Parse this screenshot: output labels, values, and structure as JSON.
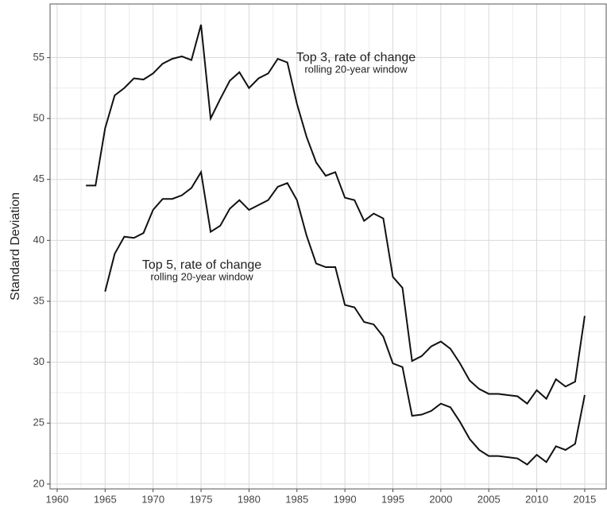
{
  "chart_data": {
    "type": "line",
    "y_label": "Standard Deviation",
    "annotations": [
      {
        "text": "Top 3, rate of change",
        "sub": "rolling 20-year window"
      },
      {
        "text": "Top 5, rate of change",
        "sub": "rolling 20-year window"
      }
    ],
    "series": [
      {
        "color": "#111111",
        "x": [
          1963,
          1964,
          1965,
          1966,
          1967,
          1968,
          1969,
          1970,
          1971,
          1972,
          1973,
          1974,
          1975,
          1976,
          1977,
          1978,
          1979,
          1980,
          1981,
          1982,
          1983,
          1984,
          1985,
          1986,
          1987,
          1988,
          1989,
          1990,
          1991,
          1992,
          1993,
          1994,
          1995,
          1996,
          1997,
          1998,
          1999,
          2000,
          2001,
          2002,
          2003,
          2004,
          2005,
          2006,
          2007,
          2008,
          2009,
          2010,
          2011,
          2012,
          2013,
          2014,
          2015
        ],
        "values": [
          44.5,
          44.5,
          49.2,
          51.9,
          52.5,
          53.3,
          53.2,
          53.7,
          54.5,
          54.9,
          55.1,
          54.8,
          57.7,
          50.0,
          51.6,
          53.1,
          53.8,
          52.5,
          53.3,
          53.7,
          54.9,
          54.6,
          51.2,
          48.5,
          46.4,
          45.3,
          45.6,
          43.5,
          43.3,
          41.6,
          42.2,
          41.8,
          37.0,
          36.1,
          30.1,
          30.5,
          31.3,
          31.7,
          31.1,
          29.9,
          28.5,
          27.8,
          27.4,
          27.4,
          27.3,
          27.2,
          26.6,
          27.7,
          27.0,
          28.6,
          28.0,
          28.4,
          33.8
        ]
      },
      {
        "color": "#111111",
        "x": [
          1965,
          1966,
          1967,
          1968,
          1969,
          1970,
          1971,
          1972,
          1973,
          1974,
          1975,
          1976,
          1977,
          1978,
          1979,
          1980,
          1981,
          1982,
          1983,
          1984,
          1985,
          1986,
          1987,
          1988,
          1989,
          1990,
          1991,
          1992,
          1993,
          1994,
          1995,
          1996,
          1997,
          1998,
          1999,
          2000,
          2001,
          2002,
          2003,
          2004,
          2005,
          2006,
          2007,
          2008,
          2009,
          2010,
          2011,
          2012,
          2013,
          2014,
          2015
        ],
        "values": [
          35.8,
          38.9,
          40.3,
          40.2,
          40.6,
          42.5,
          43.4,
          43.4,
          43.7,
          44.3,
          45.6,
          40.7,
          41.2,
          42.6,
          43.3,
          42.5,
          42.9,
          43.3,
          44.4,
          44.7,
          43.3,
          40.4,
          38.1,
          37.8,
          37.8,
          34.7,
          34.5,
          33.3,
          33.1,
          32.1,
          29.9,
          29.6,
          25.6,
          25.7,
          26.0,
          26.6,
          26.3,
          25.1,
          23.7,
          22.8,
          22.3,
          22.3,
          22.2,
          22.1,
          21.6,
          22.4,
          21.8,
          23.1,
          22.8,
          23.3,
          27.3
        ]
      }
    ],
    "xlim": [
      1959.26,
      2017.24
    ],
    "xticks": [
      1960,
      1965,
      1970,
      1975,
      1980,
      1985,
      1990,
      1995,
      2000,
      2005,
      2010,
      2015
    ],
    "ylim": [
      19.6,
      59.4
    ],
    "yticks": [
      20,
      25,
      30,
      35,
      40,
      45,
      50,
      55
    ],
    "grid": true
  }
}
